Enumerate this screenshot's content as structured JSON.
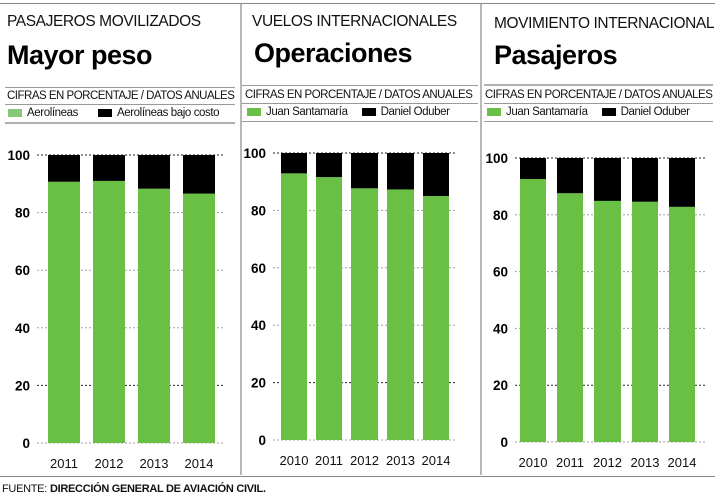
{
  "colors": {
    "green": "#6abf45",
    "green_light": "#7ec86a",
    "black": "#000000",
    "grid": "#9a9a9a"
  },
  "footer": {
    "label": "FUENTE:",
    "source": "DIRECCIÓN GENERAL DE AVIACIÓN CIVIL."
  },
  "chart_data": [
    {
      "type": "bar",
      "stacked": true,
      "kicker": "PASAJEROS MOVILIZADOS",
      "title": "Mayor peso",
      "subtitle": "CIFRAS EN PORCENTAJE / DATOS ANUALES",
      "categories": [
        "2011",
        "2012",
        "2013",
        "2014"
      ],
      "series": [
        {
          "name": "Aerolíneas",
          "color": "#6abf45",
          "values": [
            90.7,
            91.0,
            88.3,
            86.6
          ]
        },
        {
          "name": "Aerolíneas bajo costo",
          "color": "#000000",
          "values": [
            9.3,
            9.0,
            11.7,
            13.4
          ]
        }
      ],
      "yticks": [
        0,
        20,
        40,
        60,
        80,
        100
      ],
      "ylim": [
        0,
        100
      ],
      "xlabel": "",
      "ylabel": "",
      "grid": true,
      "legend": "top"
    },
    {
      "type": "bar",
      "stacked": true,
      "kicker": "VUELOS INTERNACIONALES",
      "title": "Operaciones",
      "subtitle": "CIFRAS EN PORCENTAJE / DATOS ANUALES",
      "categories": [
        "2010",
        "2011",
        "2012",
        "2013",
        "2014"
      ],
      "series": [
        {
          "name": "Juan Santamaría",
          "color": "#6abf45",
          "values": [
            92.9,
            91.6,
            87.7,
            87.3,
            85.0
          ]
        },
        {
          "name": "Daniel Oduber",
          "color": "#000000",
          "values": [
            7.1,
            8.4,
            12.3,
            12.7,
            15.0
          ]
        }
      ],
      "yticks": [
        0,
        20,
        40,
        60,
        80,
        100
      ],
      "ylim": [
        0,
        100
      ],
      "xlabel": "",
      "ylabel": "",
      "grid": true,
      "legend": "top"
    },
    {
      "type": "bar",
      "stacked": true,
      "kicker": "MOVIMIENTO INTERNACIONAL",
      "title": "Pasajeros",
      "subtitle": "CIFRAS EN PORCENTAJE / DATOS ANUALES",
      "categories": [
        "2010",
        "2011",
        "2012",
        "2013",
        "2014"
      ],
      "series": [
        {
          "name": "Juan Santamaría",
          "color": "#6abf45",
          "values": [
            92.6,
            87.6,
            84.9,
            84.6,
            82.8
          ]
        },
        {
          "name": "Daniel Oduber",
          "color": "#000000",
          "values": [
            7.4,
            12.4,
            15.1,
            15.4,
            17.2
          ]
        }
      ],
      "yticks": [
        0,
        20,
        40,
        60,
        80,
        100
      ],
      "ylim": [
        0,
        100
      ],
      "xlabel": "",
      "ylabel": "",
      "grid": true,
      "legend": "top"
    }
  ]
}
